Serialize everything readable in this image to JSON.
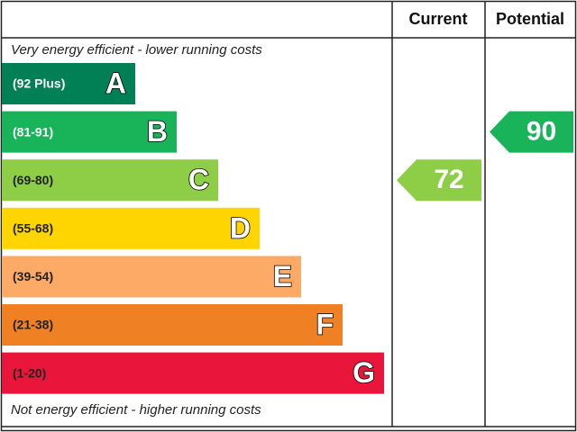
{
  "header": {
    "current": "Current",
    "potential": "Potential"
  },
  "top_note": "Very energy efficient - lower running costs",
  "bottom_note": "Not energy efficient - higher running costs",
  "bands": [
    {
      "range": "(92 Plus)",
      "letter": "A",
      "color": "#008054"
    },
    {
      "range": "(81-91)",
      "letter": "B",
      "color": "#19b459"
    },
    {
      "range": "(69-80)",
      "letter": "C",
      "color": "#8dce46"
    },
    {
      "range": "(55-68)",
      "letter": "D",
      "color": "#ffd500"
    },
    {
      "range": "(39-54)",
      "letter": "E",
      "color": "#fcaa65"
    },
    {
      "range": "(21-38)",
      "letter": "F",
      "color": "#ef8023"
    },
    {
      "range": "(1-20)",
      "letter": "G",
      "color": "#e9153b"
    }
  ],
  "current": {
    "value": 72,
    "color": "#8dce46"
  },
  "potential": {
    "value": 90,
    "color": "#19b459"
  }
}
